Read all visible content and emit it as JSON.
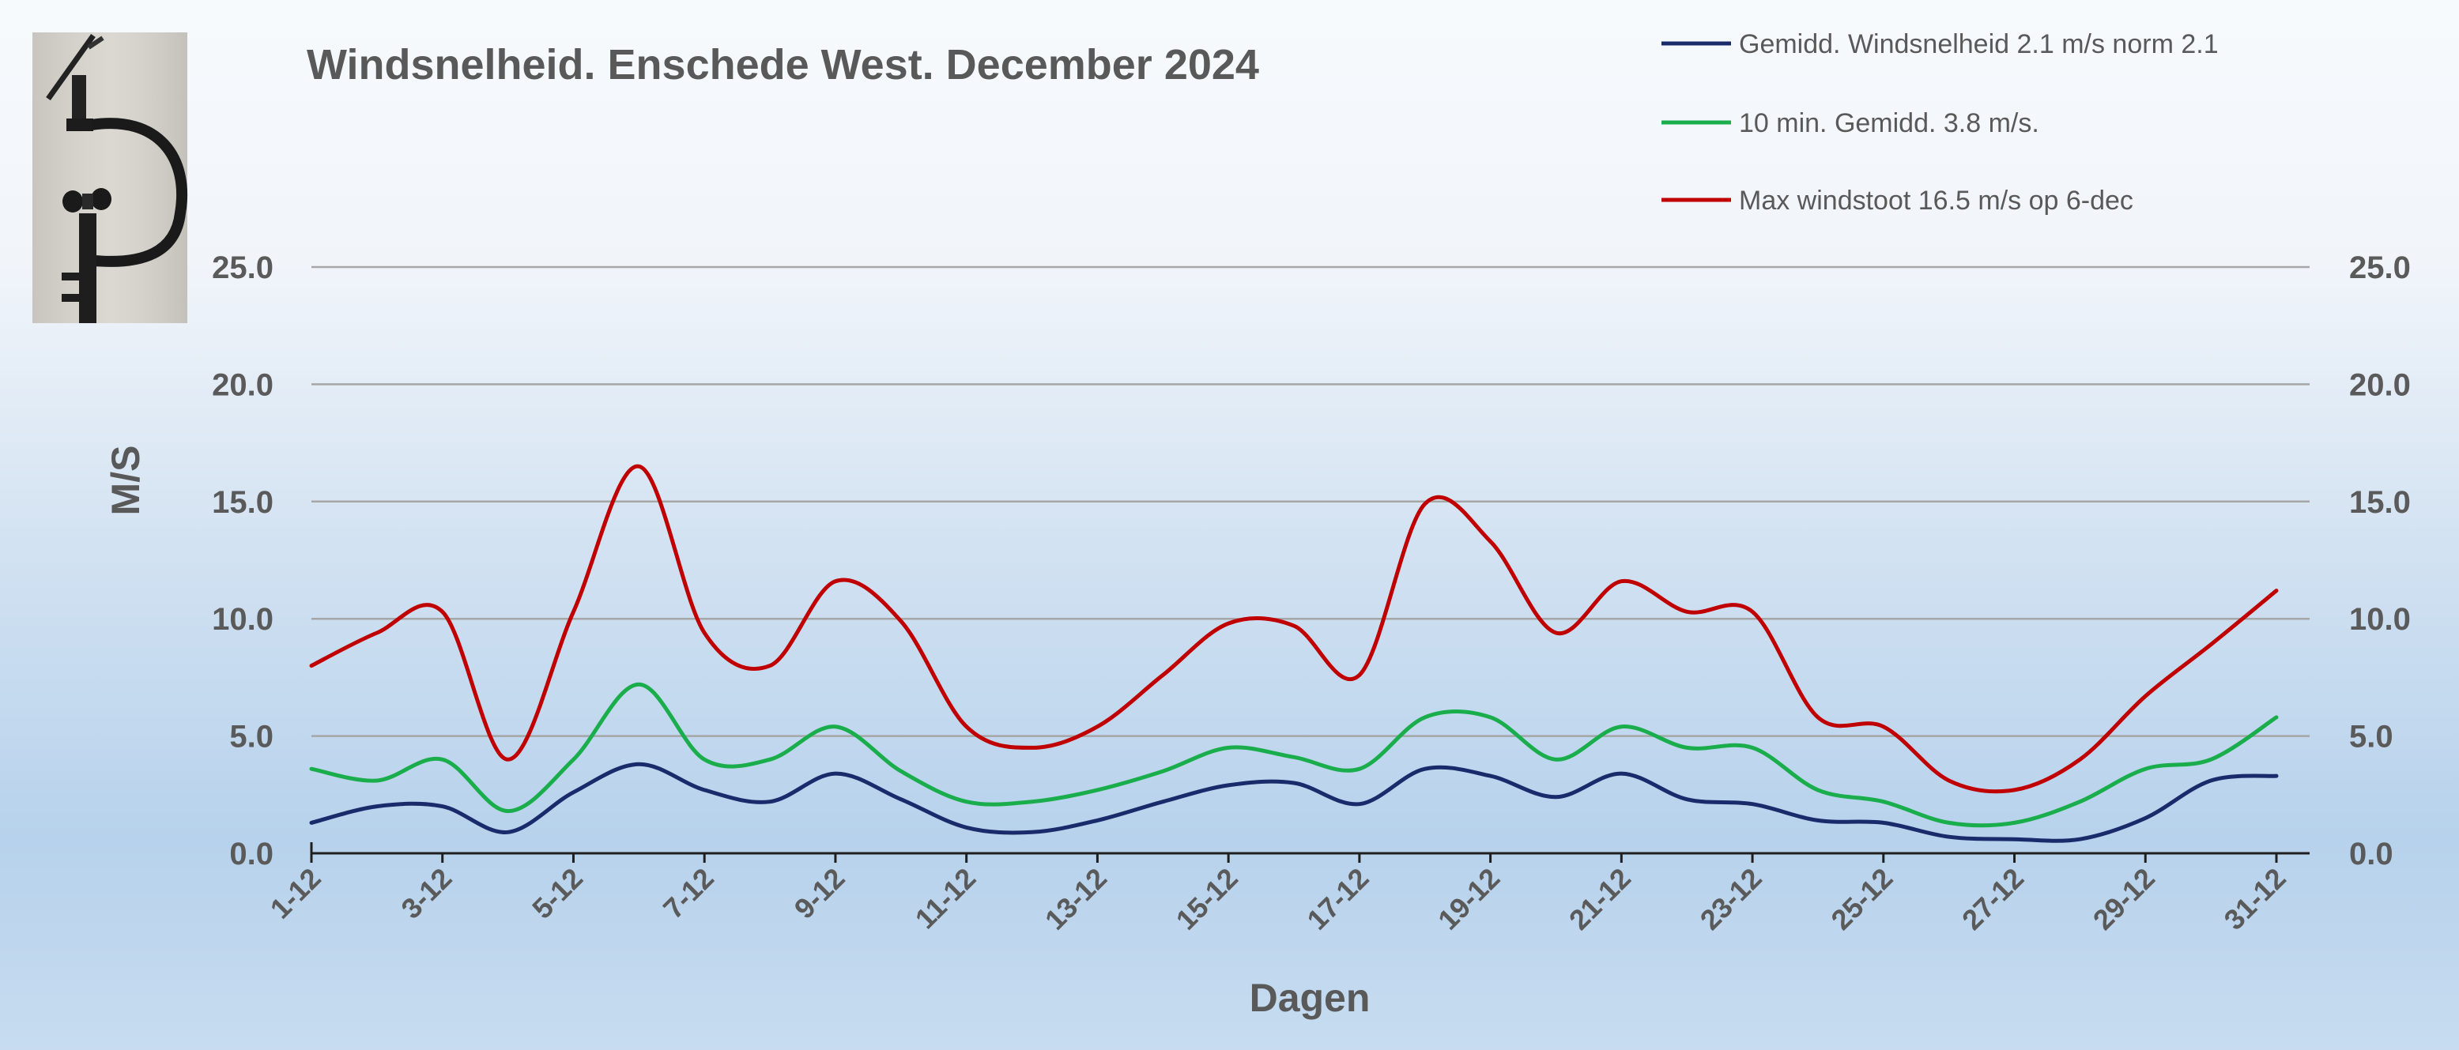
{
  "chart_data": {
    "type": "line",
    "title": "Windsnelheid. Enschede West. December 2024",
    "xlabel": "Dagen",
    "ylabel": "M/S",
    "ylim": [
      0,
      25
    ],
    "y_ticks": [
      "0.0",
      "5.0",
      "10.0",
      "15.0",
      "20.0",
      "25.0"
    ],
    "x_tick_labels": [
      "1-12",
      "3-12",
      "5-12",
      "7-12",
      "9-12",
      "11-12",
      "13-12",
      "15-12",
      "17-12",
      "19-12",
      "21-12",
      "23-12",
      "25-12",
      "27-12",
      "29-12",
      "31-12"
    ],
    "categories": [
      "1-12",
      "2-12",
      "3-12",
      "4-12",
      "5-12",
      "6-12",
      "7-12",
      "8-12",
      "9-12",
      "10-12",
      "11-12",
      "12-12",
      "13-12",
      "14-12",
      "15-12",
      "16-12",
      "17-12",
      "18-12",
      "19-12",
      "20-12",
      "21-12",
      "22-12",
      "23-12",
      "24-12",
      "25-12",
      "26-12",
      "27-12",
      "28-12",
      "29-12",
      "30-12",
      "31-12"
    ],
    "grid": true,
    "legend_position": "top-right",
    "series": [
      {
        "name": "Gemidd. Windsnelheid 2.1 m/s norm 2.1",
        "color": "#1a2b6b",
        "values": [
          1.3,
          2.0,
          2.0,
          0.9,
          2.6,
          3.8,
          2.7,
          2.2,
          3.4,
          2.3,
          1.1,
          0.9,
          1.4,
          2.2,
          2.9,
          3.0,
          2.1,
          3.6,
          3.3,
          2.4,
          3.4,
          2.3,
          2.1,
          1.4,
          1.3,
          0.7,
          0.6,
          0.6,
          1.5,
          3.1,
          3.3
        ]
      },
      {
        "name": "10 min. Gemidd. 3.8 m/s.",
        "color": "#1aad4b",
        "values": [
          3.6,
          3.1,
          4.0,
          1.8,
          4.0,
          7.2,
          4.0,
          4.0,
          5.4,
          3.5,
          2.2,
          2.2,
          2.7,
          3.5,
          4.5,
          4.1,
          3.6,
          5.8,
          5.8,
          4.0,
          5.4,
          4.5,
          4.5,
          2.7,
          2.2,
          1.3,
          1.3,
          2.2,
          3.6,
          4.0,
          5.8
        ]
      },
      {
        "name": "Max windstoot 16.5 m/s    op 6-dec",
        "color": "#c00000",
        "values": [
          8.0,
          9.4,
          10.3,
          4.0,
          10.3,
          16.5,
          9.4,
          8.0,
          11.6,
          9.9,
          5.4,
          4.5,
          5.4,
          7.6,
          9.8,
          9.7,
          7.6,
          14.9,
          13.3,
          9.4,
          11.6,
          10.3,
          10.3,
          5.8,
          5.4,
          3.1,
          2.7,
          4.0,
          6.7,
          8.9,
          11.2
        ]
      }
    ]
  }
}
